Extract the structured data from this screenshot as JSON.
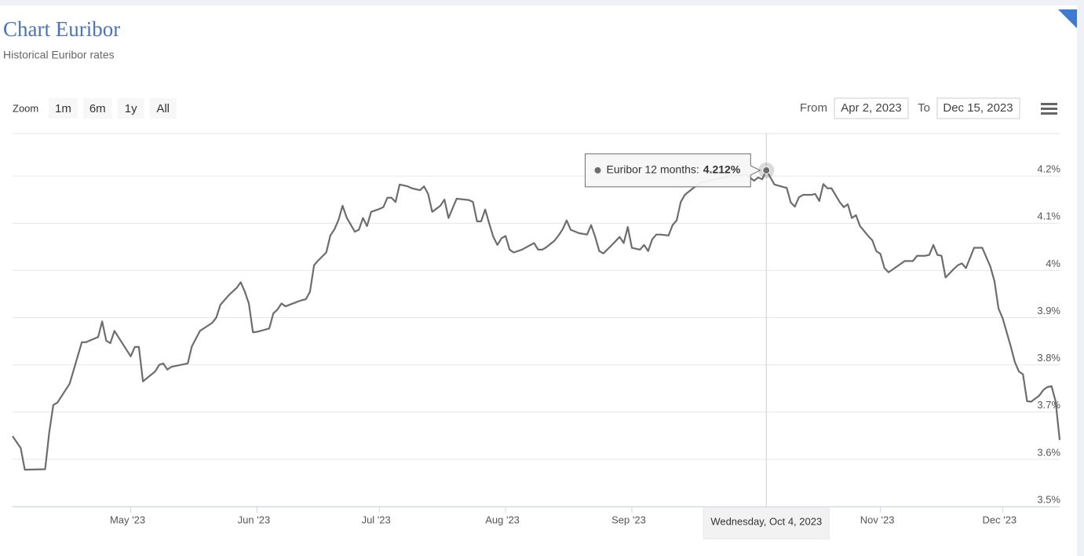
{
  "chart_data": {
    "type": "line",
    "title": "Chart Euribor",
    "subtitle": "Historical Euribor rates",
    "range_selector": {
      "label": "Zoom",
      "buttons": [
        "1m",
        "6m",
        "1y",
        "All"
      ],
      "from_label": "From",
      "from": "Apr 2, 2023",
      "to_label": "To",
      "to": "Dec 15, 2023"
    },
    "xlim": [
      "2023-04-02",
      "2023-12-15"
    ],
    "xticks": [
      {
        "value": "2023-05-01",
        "label": "May '23"
      },
      {
        "value": "2023-06-01",
        "label": "Jun '23"
      },
      {
        "value": "2023-07-01",
        "label": "Jul '23"
      },
      {
        "value": "2023-08-01",
        "label": "Aug '23"
      },
      {
        "value": "2023-09-01",
        "label": "Sep '23"
      },
      {
        "value": "2023-11-01",
        "label": "Nov '23"
      },
      {
        "value": "2023-12-01",
        "label": "Dec '23"
      }
    ],
    "ylim": [
      3.5,
      4.29
    ],
    "yticks": [
      {
        "value": 3.5,
        "label": "3.5%"
      },
      {
        "value": 3.6,
        "label": "3.6%"
      },
      {
        "value": 3.7,
        "label": "3.7%"
      },
      {
        "value": 3.8,
        "label": "3.8%"
      },
      {
        "value": 3.9,
        "label": "3.9%"
      },
      {
        "value": 4,
        "label": "4%"
      },
      {
        "value": 4.1,
        "label": "4.1%"
      },
      {
        "value": 4.2,
        "label": "4.2%"
      }
    ],
    "grid": true,
    "x": [
      "2023-04-02",
      "2023-04-04",
      "2023-04-05",
      "2023-04-10",
      "2023-04-11",
      "2023-04-12",
      "2023-04-13",
      "2023-04-16",
      "2023-04-19",
      "2023-04-20",
      "2023-04-23",
      "2023-04-24",
      "2023-04-25",
      "2023-04-26",
      "2023-04-27",
      "2023-05-01",
      "2023-05-02",
      "2023-05-03",
      "2023-05-04",
      "2023-05-07",
      "2023-05-08",
      "2023-05-09",
      "2023-05-10",
      "2023-05-11",
      "2023-05-15",
      "2023-05-16",
      "2023-05-18",
      "2023-05-21",
      "2023-05-22",
      "2023-05-23",
      "2023-05-25",
      "2023-05-27",
      "2023-05-28",
      "2023-05-29",
      "2023-05-30",
      "2023-05-31",
      "2023-06-01",
      "2023-06-04",
      "2023-06-05",
      "2023-06-06",
      "2023-06-07",
      "2023-06-08",
      "2023-06-11",
      "2023-06-12",
      "2023-06-13",
      "2023-06-14",
      "2023-06-15",
      "2023-06-16",
      "2023-06-18",
      "2023-06-19",
      "2023-06-20",
      "2023-06-21",
      "2023-06-22",
      "2023-06-23",
      "2023-06-25",
      "2023-06-26",
      "2023-06-27",
      "2023-06-28",
      "2023-06-29",
      "2023-07-01",
      "2023-07-02",
      "2023-07-03",
      "2023-07-04",
      "2023-07-05",
      "2023-07-06",
      "2023-07-08",
      "2023-07-09",
      "2023-07-11",
      "2023-07-12",
      "2023-07-13",
      "2023-07-14",
      "2023-07-16",
      "2023-07-17",
      "2023-07-18",
      "2023-07-20",
      "2023-07-23",
      "2023-07-24",
      "2023-07-25",
      "2023-07-26",
      "2023-07-27",
      "2023-07-28",
      "2023-07-29",
      "2023-07-30",
      "2023-07-31",
      "2023-08-01",
      "2023-08-02",
      "2023-08-03",
      "2023-08-05",
      "2023-08-08",
      "2023-08-09",
      "2023-08-10",
      "2023-08-11",
      "2023-08-13",
      "2023-08-14",
      "2023-08-15",
      "2023-08-16",
      "2023-08-17",
      "2023-08-19",
      "2023-08-21",
      "2023-08-22",
      "2023-08-23",
      "2023-08-24",
      "2023-08-25",
      "2023-08-27",
      "2023-08-29",
      "2023-08-30",
      "2023-08-31",
      "2023-09-01",
      "2023-09-03",
      "2023-09-04",
      "2023-09-05",
      "2023-09-06",
      "2023-09-07",
      "2023-09-08",
      "2023-09-10",
      "2023-09-11",
      "2023-09-12",
      "2023-09-13",
      "2023-09-14",
      "2023-09-16",
      "2023-09-18",
      "2023-09-21",
      "2023-09-25",
      "2023-09-29",
      "2023-10-01",
      "2023-10-02",
      "2023-10-03",
      "2023-10-04",
      "2023-10-06",
      "2023-10-08",
      "2023-10-09",
      "2023-10-10",
      "2023-10-11",
      "2023-10-12",
      "2023-10-13",
      "2023-10-15",
      "2023-10-16",
      "2023-10-17",
      "2023-10-18",
      "2023-10-19",
      "2023-10-20",
      "2023-10-22",
      "2023-10-23",
      "2023-10-24",
      "2023-10-25",
      "2023-10-26",
      "2023-10-27",
      "2023-10-29",
      "2023-10-30",
      "2023-10-31",
      "2023-11-01",
      "2023-11-02",
      "2023-11-03",
      "2023-11-05",
      "2023-11-07",
      "2023-11-09",
      "2023-11-10",
      "2023-11-12",
      "2023-11-13",
      "2023-11-14",
      "2023-11-15",
      "2023-11-16",
      "2023-11-17",
      "2023-11-19",
      "2023-11-20",
      "2023-11-21",
      "2023-11-22",
      "2023-11-24",
      "2023-11-26",
      "2023-11-28",
      "2023-11-29",
      "2023-11-30",
      "2023-12-01",
      "2023-12-03",
      "2023-12-04",
      "2023-12-05",
      "2023-12-06",
      "2023-12-07",
      "2023-12-08",
      "2023-12-10",
      "2023-12-11",
      "2023-12-12",
      "2023-12-13",
      "2023-12-14",
      "2023-12-15"
    ],
    "series": [
      {
        "name": "Euribor 12 months",
        "color": "#6d6d6d",
        "values": [
          3.649,
          3.624,
          3.578,
          3.579,
          3.657,
          3.715,
          3.72,
          3.76,
          3.848,
          3.848,
          3.859,
          3.892,
          3.851,
          3.846,
          3.872,
          3.818,
          3.838,
          3.838,
          3.765,
          3.786,
          3.8,
          3.803,
          3.79,
          3.796,
          3.803,
          3.839,
          3.872,
          3.889,
          3.9,
          3.927,
          3.947,
          3.963,
          3.975,
          3.955,
          3.93,
          3.869,
          3.87,
          3.877,
          3.909,
          3.917,
          3.93,
          3.924,
          3.934,
          3.937,
          3.939,
          3.955,
          4.011,
          4.021,
          4.038,
          4.074,
          4.087,
          4.107,
          4.137,
          4.112,
          4.082,
          4.086,
          4.111,
          4.094,
          4.124,
          4.13,
          4.134,
          4.154,
          4.154,
          4.145,
          4.182,
          4.178,
          4.174,
          4.17,
          4.178,
          4.162,
          4.124,
          4.137,
          4.15,
          4.111,
          4.152,
          4.149,
          4.145,
          4.104,
          4.104,
          4.129,
          4.099,
          4.071,
          4.054,
          4.068,
          4.073,
          4.044,
          4.038,
          4.044,
          4.058,
          4.044,
          4.044,
          4.049,
          4.063,
          4.074,
          4.087,
          4.106,
          4.086,
          4.079,
          4.076,
          4.096,
          4.071,
          4.041,
          4.036,
          4.053,
          4.071,
          4.058,
          4.092,
          4.048,
          4.044,
          4.054,
          4.041,
          4.066,
          4.076,
          4.076,
          4.074,
          4.096,
          4.106,
          4.145,
          4.16,
          4.174,
          4.187,
          4.192,
          4.2,
          4.203,
          4.19,
          4.197,
          4.193,
          4.212,
          4.182,
          4.177,
          4.175,
          4.144,
          4.135,
          4.155,
          4.16,
          4.16,
          4.162,
          4.147,
          4.183,
          4.174,
          4.174,
          4.145,
          4.134,
          4.14,
          4.111,
          4.117,
          4.094,
          4.073,
          4.064,
          4.041,
          4.035,
          4.005,
          3.996,
          4.008,
          4.02,
          4.02,
          4.031,
          4.031,
          4.033,
          4.054,
          4.033,
          4.031,
          3.985,
          4.003,
          4.011,
          4.015,
          4.005,
          4.048,
          4.048,
          4.008,
          3.977,
          3.919,
          3.899,
          3.839,
          3.806,
          3.786,
          3.78,
          3.723,
          3.722,
          3.735,
          3.747,
          3.753,
          3.755,
          3.723,
          3.641
        ]
      }
    ],
    "tooltip": {
      "x": "2023-10-04",
      "x_label": "Wednesday, Oct 4, 2023",
      "label": "Euribor 12 months:",
      "value": 4.212,
      "value_label": "4.212%"
    }
  }
}
